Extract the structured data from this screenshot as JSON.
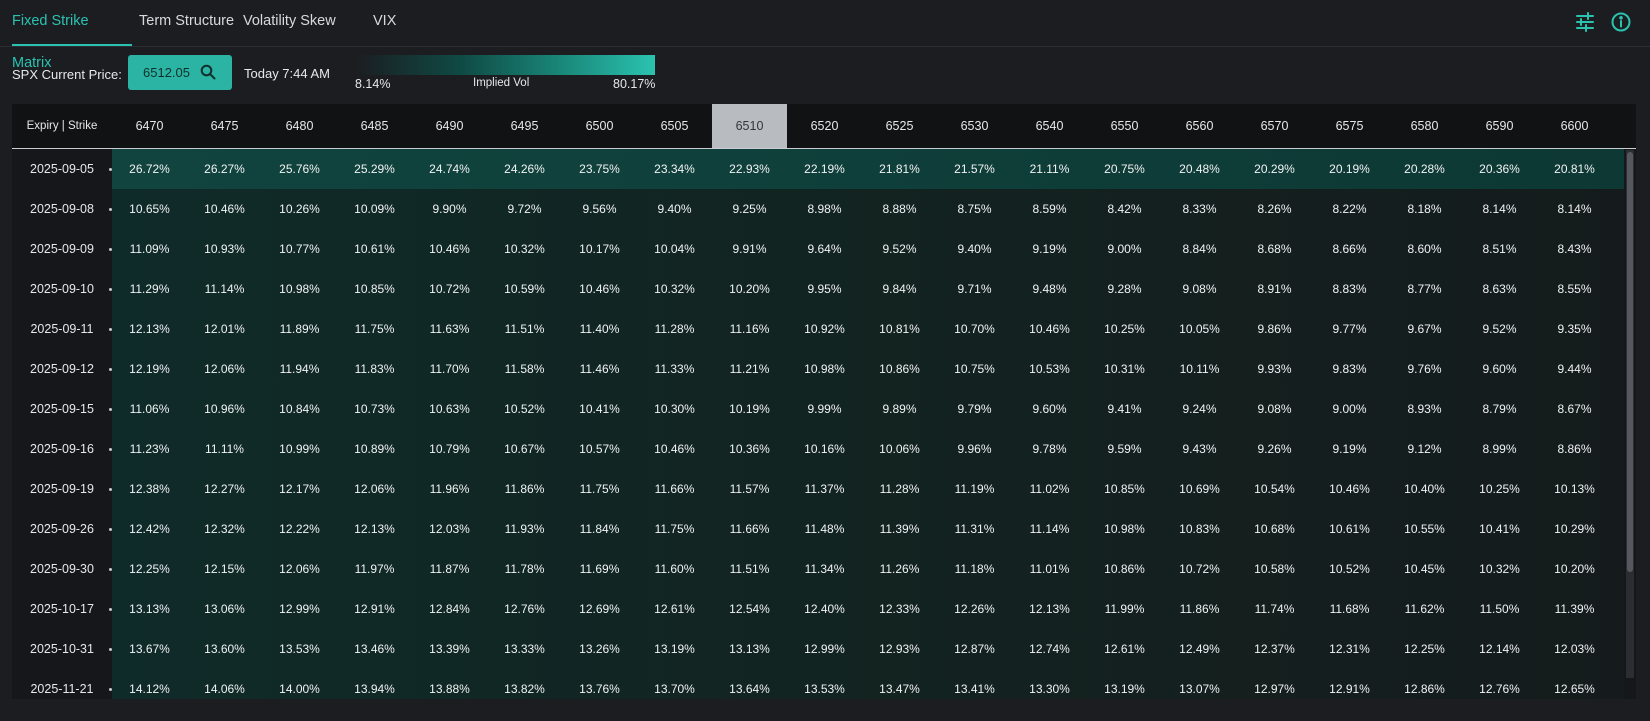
{
  "tabs": [
    "Fixed Strike Matrix",
    "Term Structure",
    "Volatility Skew",
    "VIX"
  ],
  "icons": [
    "sliders-icon",
    "info-icon"
  ],
  "accent_color": "#2bc2b0",
  "price": {
    "label": "SPX Current Price:",
    "value": "6512.05",
    "time": "Today 7:44 AM"
  },
  "vol_legend": {
    "min": "8.14%",
    "title": "Implied Vol",
    "max": "80.17%"
  },
  "table": {
    "corner": "Expiry | Strike",
    "selected_strike": "6510",
    "strikes": [
      "6470",
      "6475",
      "6480",
      "6485",
      "6490",
      "6495",
      "6500",
      "6505",
      "6510",
      "6520",
      "6525",
      "6530",
      "6540",
      "6550",
      "6560",
      "6570",
      "6575",
      "6580",
      "6590",
      "6600"
    ],
    "rows": [
      {
        "expiry": "2025-09-05",
        "values": [
          "26.72%",
          "26.27%",
          "25.76%",
          "25.29%",
          "24.74%",
          "24.26%",
          "23.75%",
          "23.34%",
          "22.93%",
          "22.19%",
          "21.81%",
          "21.57%",
          "21.11%",
          "20.75%",
          "20.48%",
          "20.29%",
          "20.19%",
          "20.28%",
          "20.36%",
          "20.81%"
        ]
      },
      {
        "expiry": "2025-09-08",
        "values": [
          "10.65%",
          "10.46%",
          "10.26%",
          "10.09%",
          "9.90%",
          "9.72%",
          "9.56%",
          "9.40%",
          "9.25%",
          "8.98%",
          "8.88%",
          "8.75%",
          "8.59%",
          "8.42%",
          "8.33%",
          "8.26%",
          "8.22%",
          "8.18%",
          "8.14%",
          "8.14%"
        ]
      },
      {
        "expiry": "2025-09-09",
        "values": [
          "11.09%",
          "10.93%",
          "10.77%",
          "10.61%",
          "10.46%",
          "10.32%",
          "10.17%",
          "10.04%",
          "9.91%",
          "9.64%",
          "9.52%",
          "9.40%",
          "9.19%",
          "9.00%",
          "8.84%",
          "8.68%",
          "8.66%",
          "8.60%",
          "8.51%",
          "8.43%"
        ]
      },
      {
        "expiry": "2025-09-10",
        "values": [
          "11.29%",
          "11.14%",
          "10.98%",
          "10.85%",
          "10.72%",
          "10.59%",
          "10.46%",
          "10.32%",
          "10.20%",
          "9.95%",
          "9.84%",
          "9.71%",
          "9.48%",
          "9.28%",
          "9.08%",
          "8.91%",
          "8.83%",
          "8.77%",
          "8.63%",
          "8.55%"
        ]
      },
      {
        "expiry": "2025-09-11",
        "values": [
          "12.13%",
          "12.01%",
          "11.89%",
          "11.75%",
          "11.63%",
          "11.51%",
          "11.40%",
          "11.28%",
          "11.16%",
          "10.92%",
          "10.81%",
          "10.70%",
          "10.46%",
          "10.25%",
          "10.05%",
          "9.86%",
          "9.77%",
          "9.67%",
          "9.52%",
          "9.35%"
        ]
      },
      {
        "expiry": "2025-09-12",
        "values": [
          "12.19%",
          "12.06%",
          "11.94%",
          "11.83%",
          "11.70%",
          "11.58%",
          "11.46%",
          "11.33%",
          "11.21%",
          "10.98%",
          "10.86%",
          "10.75%",
          "10.53%",
          "10.31%",
          "10.11%",
          "9.93%",
          "9.83%",
          "9.76%",
          "9.60%",
          "9.44%"
        ]
      },
      {
        "expiry": "2025-09-15",
        "values": [
          "11.06%",
          "10.96%",
          "10.84%",
          "10.73%",
          "10.63%",
          "10.52%",
          "10.41%",
          "10.30%",
          "10.19%",
          "9.99%",
          "9.89%",
          "9.79%",
          "9.60%",
          "9.41%",
          "9.24%",
          "9.08%",
          "9.00%",
          "8.93%",
          "8.79%",
          "8.67%"
        ]
      },
      {
        "expiry": "2025-09-16",
        "values": [
          "11.23%",
          "11.11%",
          "10.99%",
          "10.89%",
          "10.79%",
          "10.67%",
          "10.57%",
          "10.46%",
          "10.36%",
          "10.16%",
          "10.06%",
          "9.96%",
          "9.78%",
          "9.59%",
          "9.43%",
          "9.26%",
          "9.19%",
          "9.12%",
          "8.99%",
          "8.86%"
        ]
      },
      {
        "expiry": "2025-09-19",
        "values": [
          "12.38%",
          "12.27%",
          "12.17%",
          "12.06%",
          "11.96%",
          "11.86%",
          "11.75%",
          "11.66%",
          "11.57%",
          "11.37%",
          "11.28%",
          "11.19%",
          "11.02%",
          "10.85%",
          "10.69%",
          "10.54%",
          "10.46%",
          "10.40%",
          "10.25%",
          "10.13%"
        ]
      },
      {
        "expiry": "2025-09-26",
        "values": [
          "12.42%",
          "12.32%",
          "12.22%",
          "12.13%",
          "12.03%",
          "11.93%",
          "11.84%",
          "11.75%",
          "11.66%",
          "11.48%",
          "11.39%",
          "11.31%",
          "11.14%",
          "10.98%",
          "10.83%",
          "10.68%",
          "10.61%",
          "10.55%",
          "10.41%",
          "10.29%"
        ]
      },
      {
        "expiry": "2025-09-30",
        "values": [
          "12.25%",
          "12.15%",
          "12.06%",
          "11.97%",
          "11.87%",
          "11.78%",
          "11.69%",
          "11.60%",
          "11.51%",
          "11.34%",
          "11.26%",
          "11.18%",
          "11.01%",
          "10.86%",
          "10.72%",
          "10.58%",
          "10.52%",
          "10.45%",
          "10.32%",
          "10.20%"
        ]
      },
      {
        "expiry": "2025-10-17",
        "values": [
          "13.13%",
          "13.06%",
          "12.99%",
          "12.91%",
          "12.84%",
          "12.76%",
          "12.69%",
          "12.61%",
          "12.54%",
          "12.40%",
          "12.33%",
          "12.26%",
          "12.13%",
          "11.99%",
          "11.86%",
          "11.74%",
          "11.68%",
          "11.62%",
          "11.50%",
          "11.39%"
        ]
      },
      {
        "expiry": "2025-10-31",
        "values": [
          "13.67%",
          "13.60%",
          "13.53%",
          "13.46%",
          "13.39%",
          "13.33%",
          "13.26%",
          "13.19%",
          "13.13%",
          "12.99%",
          "12.93%",
          "12.87%",
          "12.74%",
          "12.61%",
          "12.49%",
          "12.37%",
          "12.31%",
          "12.25%",
          "12.14%",
          "12.03%"
        ]
      },
      {
        "expiry": "2025-11-21",
        "values": [
          "14.12%",
          "14.06%",
          "14.00%",
          "13.94%",
          "13.88%",
          "13.82%",
          "13.76%",
          "13.70%",
          "13.64%",
          "13.53%",
          "13.47%",
          "13.41%",
          "13.30%",
          "13.19%",
          "13.07%",
          "12.97%",
          "12.91%",
          "12.86%",
          "12.76%",
          "12.65%"
        ]
      }
    ]
  }
}
